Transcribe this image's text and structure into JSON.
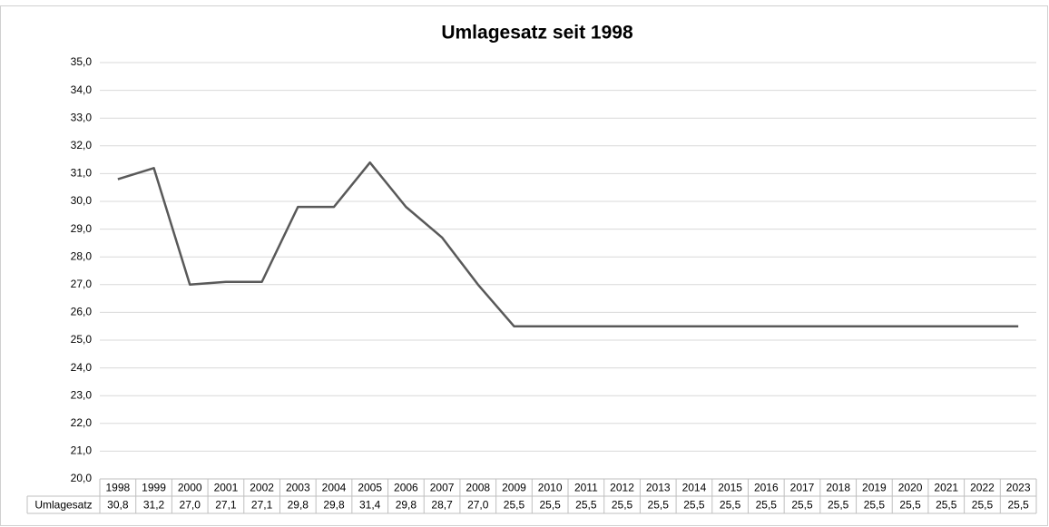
{
  "chart_data": {
    "type": "line",
    "title": "Umlagesatz seit 1998",
    "categories": [
      "1998",
      "1999",
      "2000",
      "2001",
      "2002",
      "2003",
      "2004",
      "2005",
      "2006",
      "2007",
      "2008",
      "2009",
      "2010",
      "2011",
      "2012",
      "2013",
      "2014",
      "2015",
      "2016",
      "2017",
      "2018",
      "2019",
      "2020",
      "2021",
      "2022",
      "2023"
    ],
    "series": [
      {
        "name": "Umlagesatz",
        "color": "#595959",
        "values": [
          30.8,
          31.2,
          27.0,
          27.1,
          27.1,
          29.8,
          29.8,
          31.4,
          29.8,
          28.7,
          27.0,
          25.5,
          25.5,
          25.5,
          25.5,
          25.5,
          25.5,
          25.5,
          25.5,
          25.5,
          25.5,
          25.5,
          25.5,
          25.5,
          25.5,
          25.5
        ],
        "value_labels": [
          "30,8",
          "31,2",
          "27,0",
          "27,1",
          "27,1",
          "29,8",
          "29,8",
          "31,4",
          "29,8",
          "28,7",
          "27,0",
          "25,5",
          "25,5",
          "25,5",
          "25,5",
          "25,5",
          "25,5",
          "25,5",
          "25,5",
          "25,5",
          "25,5",
          "25,5",
          "25,5",
          "25,5",
          "25,5",
          "25,5"
        ]
      }
    ],
    "ylim": [
      20,
      35
    ],
    "yticks": [
      {
        "value": 20,
        "label": "20,0"
      },
      {
        "value": 21,
        "label": "21,0"
      },
      {
        "value": 22,
        "label": "22,0"
      },
      {
        "value": 23,
        "label": "23,0"
      },
      {
        "value": 24,
        "label": "24,0"
      },
      {
        "value": 25,
        "label": "25,0"
      },
      {
        "value": 26,
        "label": "26,0"
      },
      {
        "value": 27,
        "label": "27,0"
      },
      {
        "value": 28,
        "label": "28,0"
      },
      {
        "value": 29,
        "label": "29,0"
      },
      {
        "value": 30,
        "label": "30,0"
      },
      {
        "value": 31,
        "label": "31,0"
      },
      {
        "value": 32,
        "label": "32,0"
      },
      {
        "value": 33,
        "label": "33,0"
      },
      {
        "value": 34,
        "label": "34,0"
      },
      {
        "value": 35,
        "label": "35,0"
      }
    ],
    "grid": true,
    "data_table": true
  }
}
